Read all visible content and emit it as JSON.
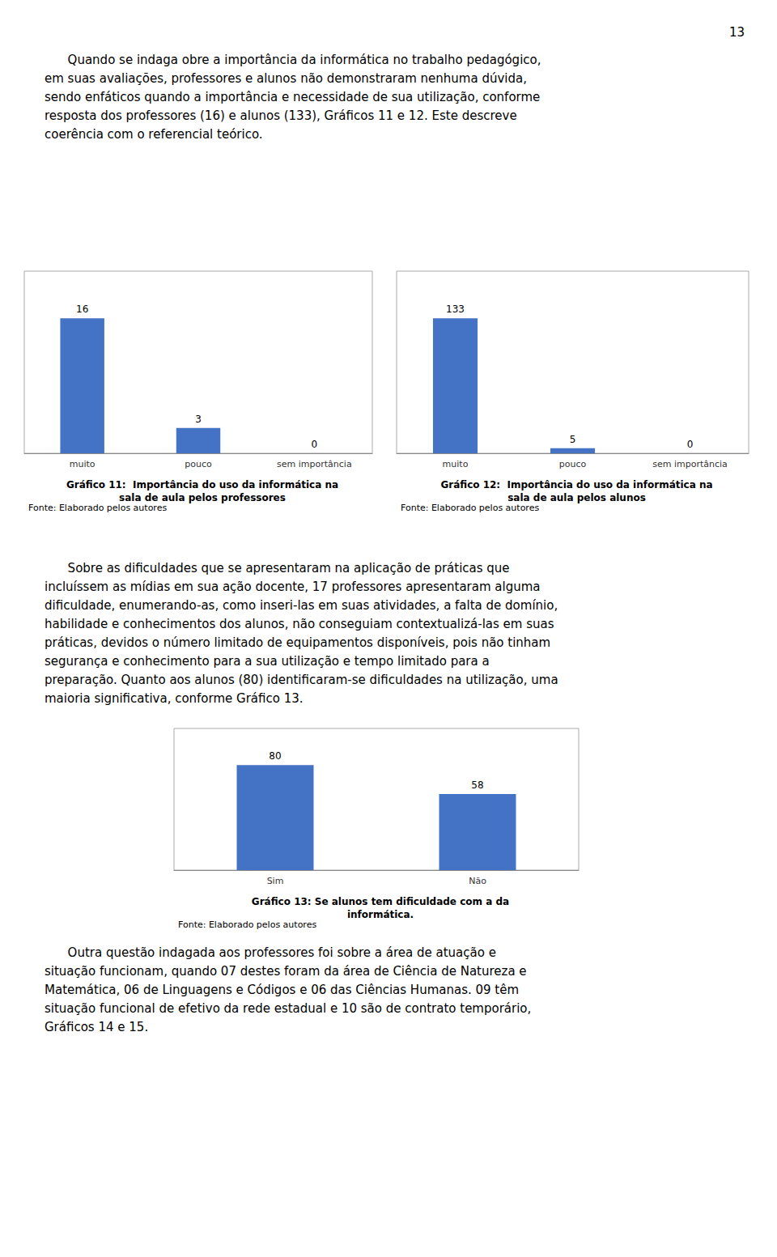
{
  "chart_data": [
    {
      "type": "bar",
      "title": "Gráfico 11:  Importância do uso da informática na\nsala de aula pelos professores",
      "categories": [
        "muito",
        "pouco",
        "sem importância"
      ],
      "values": [
        16,
        3,
        0
      ],
      "color": "#4472C4",
      "ylim": [
        0,
        21.6
      ],
      "grid": false,
      "data_labels": true,
      "tick_labels": "x",
      "annotations": [
        "Fonte: Elaborado pelos autores"
      ]
    },
    {
      "type": "bar",
      "title": "Gráfico 12:  Importância do uso da informática na\nsala de aula pelos alunos",
      "categories": [
        "muito",
        "pouco",
        "sem importância"
      ],
      "values": [
        133,
        5,
        0
      ],
      "color": "#4472C4",
      "ylim": [
        0,
        179.55
      ],
      "grid": false,
      "data_labels": true,
      "tick_labels": "x",
      "annotations": [
        "Fonte: Elaborado pelos autores"
      ]
    },
    {
      "type": "bar",
      "title": "Gráfico 13: Se alunos tem dificuldade com a da\ninformática.",
      "categories": [
        "Sim",
        "Não"
      ],
      "values": [
        80,
        58
      ],
      "color": "#4472C4",
      "ylim": [
        0,
        108
      ],
      "grid": false,
      "data_labels": true,
      "tick_labels": "x",
      "annotations": [
        "Fonte: Elaborado pelos autores"
      ]
    }
  ],
  "annotations": [
    "13",
    "      Quando se indaga obre a importância da informática no trabalho pedagógico,\nem suas avaliações, professores e alunos não demonstraram nenhuma dúvida,\nsendo enfáticos quando a importância e necessidade de sua utilização, conforme\nresposta dos professores (16) e alunos (133), Gráficos 11 e 12. Este descreve\ncoerência com o referencial teórico.",
    "      Sobre as dificuldades que se apresentaram na aplicação de práticas que\nincluíssem as mídias em sua ação docente, 17 professores apresentaram alguma\ndificuldade, enumerando-as, como inseri-las em suas atividades, a falta de domínio,\nhabilidade e conhecimentos dos alunos, não conseguiam contextualizá-las em suas\npráticas, devidos o número limitado de equipamentos disponíveis, pois não tinham\nsegurança e conhecimento para a sua utilização e tempo limitado para a\npreparação. Quanto aos alunos (80) identificaram-se dificuldades na utilização, uma\nmaioria significativa, conforme Gráfico 13.",
    "      Outra questão indagada aos professores foi sobre a área de atuação e\nsituação funcionam, quando 07 destes foram da área de Ciência de Natureza e\nMatemática, 06 de Linguagens e Códigos e 06 das Ciências Humanas. 09 têm\nsituação funcional de efetivo da rede estadual e 10 são de contrato temporário,\nGráficos 14 e 15."
  ]
}
